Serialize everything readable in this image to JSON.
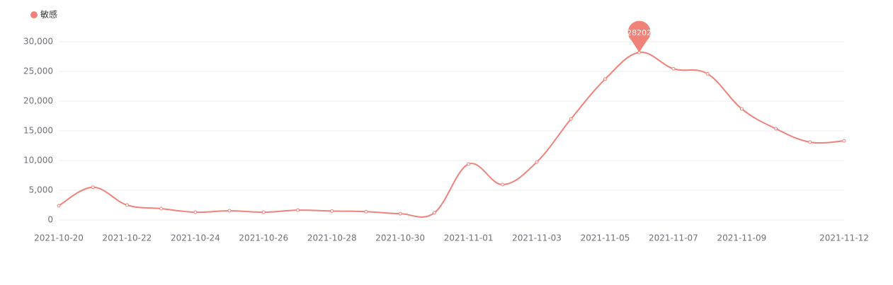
{
  "chart_data": {
    "type": "line",
    "legend_position": "top-left",
    "grid": true,
    "categories": [
      "2021-10-20",
      null,
      "2021-10-22",
      null,
      "2021-10-24",
      null,
      "2021-10-26",
      null,
      "2021-10-28",
      null,
      "2021-10-30",
      null,
      "2021-11-01",
      null,
      "2021-11-03",
      null,
      "2021-11-05",
      null,
      "2021-11-07",
      null,
      "2021-11-09",
      null,
      null,
      "2021-11-12"
    ],
    "series": [
      {
        "name": "敏感",
        "color": "#ef8279",
        "smooth": true,
        "values": [
          2400,
          5500,
          2500,
          1900,
          1300,
          1550,
          1300,
          1650,
          1500,
          1400,
          1050,
          1200,
          9400,
          5950,
          9750,
          17000,
          23700,
          28202,
          25450,
          24600,
          18700,
          15350,
          13100,
          13300
        ],
        "mark_point": "max"
      }
    ],
    "ylim": [
      0,
      30000
    ],
    "yticks": [
      0,
      {
        "value": 5000,
        "label": "5,000"
      },
      {
        "value": 10000,
        "label": "10,000"
      },
      {
        "value": 15000,
        "label": "15,000"
      },
      {
        "value": 20000,
        "label": "20,000"
      },
      {
        "value": 25000,
        "label": "25,000"
      },
      {
        "value": 30000,
        "label": "30,000"
      }
    ]
  }
}
